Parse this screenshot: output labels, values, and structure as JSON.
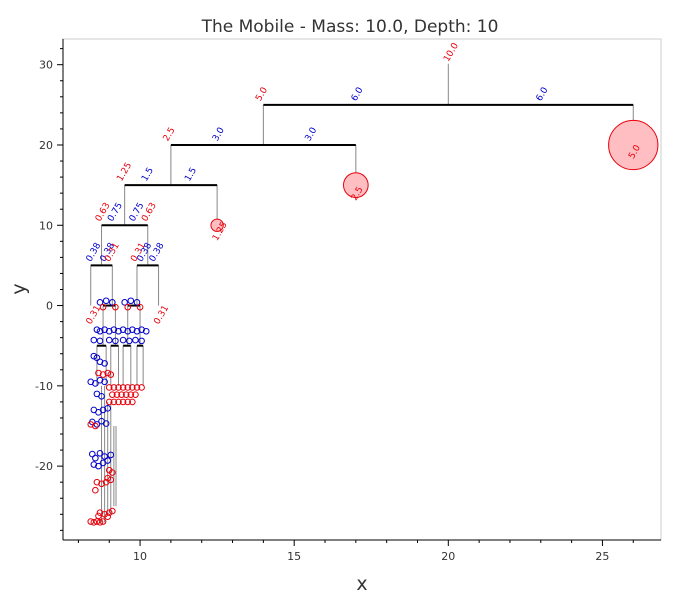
{
  "chart_data": {
    "type": "scatter",
    "title": "The Mobile  -  Mass: 10.0, Depth: 10",
    "xlabel": "x",
    "ylabel": "y",
    "xlim": [
      7.5,
      26.9
    ],
    "ylim": [
      -29.2,
      33.2
    ],
    "xticks": [
      10,
      15,
      20,
      25
    ],
    "yticks": [
      -20,
      -10,
      0,
      10,
      20,
      30
    ],
    "xticks_labels": [
      "10",
      "15",
      "20",
      "25"
    ],
    "yticks_labels": [
      "-20",
      "-10",
      "0",
      "10",
      "20",
      "30"
    ],
    "colors": {
      "mass": "#e8000b",
      "arm": "#0000cc",
      "rod": "#000000",
      "thread": "#888888",
      "mass_fill": "#ffbfc2"
    },
    "top": {
      "x": 20,
      "y": 30,
      "mass": "10.0"
    },
    "rods": [
      {
        "x1": 14,
        "x2": 26,
        "y": 25
      },
      {
        "x1": 11,
        "x2": 17,
        "y": 20
      },
      {
        "x1": 9.5,
        "x2": 12.5,
        "y": 15
      },
      {
        "x1": 8.75,
        "x2": 10.25,
        "y": 10
      },
      {
        "x1": 8.4,
        "x2": 9.1,
        "y": 5
      },
      {
        "x1": 9.9,
        "x2": 10.6,
        "y": 5
      },
      {
        "x1": 8.8,
        "x2": 9.2,
        "y": 0
      },
      {
        "x1": 9.6,
        "x2": 10.0,
        "y": 0
      },
      {
        "x1": 8.6,
        "x2": 8.9,
        "y": -5
      },
      {
        "x1": 9.05,
        "x2": 9.3,
        "y": -5
      },
      {
        "x1": 9.45,
        "x2": 9.7,
        "y": -5
      },
      {
        "x1": 9.9,
        "x2": 10.1,
        "y": -5
      }
    ],
    "threads": [
      {
        "x": 20,
        "y1": 30,
        "y2": 25
      },
      {
        "x": 14,
        "y1": 25,
        "y2": 20
      },
      {
        "x": 26,
        "y1": 25,
        "y2": 20
      },
      {
        "x": 11,
        "y1": 20,
        "y2": 15
      },
      {
        "x": 17,
        "y1": 20,
        "y2": 15
      },
      {
        "x": 9.5,
        "y1": 15,
        "y2": 10
      },
      {
        "x": 12.5,
        "y1": 15,
        "y2": 10
      },
      {
        "x": 8.75,
        "y1": 10,
        "y2": 5
      },
      {
        "x": 10.25,
        "y1": 10,
        "y2": 5
      },
      {
        "x": 8.4,
        "y1": 5,
        "y2": 0
      },
      {
        "x": 9.1,
        "y1": 5,
        "y2": 0
      },
      {
        "x": 9.9,
        "y1": 5,
        "y2": 0
      },
      {
        "x": 10.6,
        "y1": 5,
        "y2": 0
      },
      {
        "x": 8.8,
        "y1": 0,
        "y2": -5
      },
      {
        "x": 9.2,
        "y1": 0,
        "y2": -5
      },
      {
        "x": 9.6,
        "y1": 0,
        "y2": -5
      },
      {
        "x": 10.0,
        "y1": 0,
        "y2": -5
      },
      {
        "x": 8.6,
        "y1": -5,
        "y2": -10
      },
      {
        "x": 8.9,
        "y1": -5,
        "y2": -10
      },
      {
        "x": 9.05,
        "y1": -5,
        "y2": -10
      },
      {
        "x": 9.3,
        "y1": -5,
        "y2": -10
      },
      {
        "x": 9.45,
        "y1": -5,
        "y2": -10
      },
      {
        "x": 9.7,
        "y1": -5,
        "y2": -10
      },
      {
        "x": 9.9,
        "y1": -5,
        "y2": -10
      },
      {
        "x": 10.1,
        "y1": -5,
        "y2": -10
      },
      {
        "x": 8.75,
        "y1": -10,
        "y2": -27
      },
      {
        "x": 8.85,
        "y1": -10,
        "y2": -27
      },
      {
        "x": 8.95,
        "y1": -12,
        "y2": -26
      },
      {
        "x": 9.05,
        "y1": -12,
        "y2": -26
      },
      {
        "x": 9.15,
        "y1": -15,
        "y2": -25
      },
      {
        "x": 9.22,
        "y1": -15,
        "y2": -25
      }
    ],
    "masses": [
      {
        "x": 26,
        "y": 20,
        "r": 0.8,
        "label": "5.0"
      },
      {
        "x": 17,
        "y": 15,
        "r": 0.4,
        "label": "2.5"
      },
      {
        "x": 12.5,
        "y": 10,
        "r": 0.2,
        "label": "1.25"
      }
    ],
    "annotations": [
      {
        "x": 20,
        "y": 30.3,
        "text": "10.0",
        "color": "mass"
      },
      {
        "x": 13.9,
        "y": 25.4,
        "text": "5.0",
        "color": "mass"
      },
      {
        "x": 17.0,
        "y": 25.4,
        "text": "6.0",
        "color": "arm"
      },
      {
        "x": 23.0,
        "y": 25.4,
        "text": "6.0",
        "color": "arm"
      },
      {
        "x": 10.9,
        "y": 20.4,
        "text": "2.5",
        "color": "mass"
      },
      {
        "x": 12.5,
        "y": 20.4,
        "text": "3.0",
        "color": "arm"
      },
      {
        "x": 15.5,
        "y": 20.4,
        "text": "3.0",
        "color": "arm"
      },
      {
        "x": 9.4,
        "y": 15.4,
        "text": "1.25",
        "color": "mass"
      },
      {
        "x": 10.2,
        "y": 15.4,
        "text": "1.5",
        "color": "arm"
      },
      {
        "x": 11.6,
        "y": 15.4,
        "text": "1.5",
        "color": "arm"
      },
      {
        "x": 8.7,
        "y": 10.4,
        "text": "0.63",
        "color": "mass"
      },
      {
        "x": 9.1,
        "y": 10.4,
        "text": "0.75",
        "color": "arm"
      },
      {
        "x": 9.8,
        "y": 10.4,
        "text": "0.75",
        "color": "arm"
      },
      {
        "x": 10.2,
        "y": 10.4,
        "text": "0.63",
        "color": "mass"
      },
      {
        "x": 8.4,
        "y": 5.4,
        "text": "0.38",
        "color": "arm"
      },
      {
        "x": 8.85,
        "y": 5.4,
        "text": "0.38",
        "color": "arm"
      },
      {
        "x": 9.0,
        "y": 5.4,
        "text": "0.31",
        "color": "mass"
      },
      {
        "x": 9.85,
        "y": 5.4,
        "text": "0.31",
        "color": "mass"
      },
      {
        "x": 10.05,
        "y": 5.4,
        "text": "0.38",
        "color": "arm"
      },
      {
        "x": 10.45,
        "y": 5.4,
        "text": "0.38",
        "color": "arm"
      },
      {
        "x": 8.4,
        "y": -2.4,
        "text": "0.31",
        "color": "mass"
      },
      {
        "x": 10.6,
        "y": -2.4,
        "text": "0.31",
        "color": "mass"
      },
      {
        "x": 12.5,
        "y": 8.0,
        "text": "1.25",
        "color": "mass"
      },
      {
        "x": 17.0,
        "y": 13.0,
        "text": "2.5",
        "color": "mass"
      },
      {
        "x": 26.0,
        "y": 18.2,
        "text": "5.0",
        "color": "mass"
      }
    ],
    "leaves": [
      {
        "x": 8.7,
        "y": 0.4,
        "color": "arm"
      },
      {
        "x": 8.9,
        "y": 0.6,
        "color": "arm"
      },
      {
        "x": 9.1,
        "y": 0.4,
        "color": "arm"
      },
      {
        "x": 9.5,
        "y": 0.4,
        "color": "arm"
      },
      {
        "x": 9.7,
        "y": 0.6,
        "color": "arm"
      },
      {
        "x": 9.9,
        "y": 0.4,
        "color": "arm"
      },
      {
        "x": 8.8,
        "y": -0.2,
        "color": "mass"
      },
      {
        "x": 9.2,
        "y": -0.2,
        "color": "mass"
      },
      {
        "x": 9.6,
        "y": -0.2,
        "color": "mass"
      },
      {
        "x": 10.0,
        "y": -0.2,
        "color": "mass"
      },
      {
        "x": 8.6,
        "y": -3.0,
        "color": "arm"
      },
      {
        "x": 8.7,
        "y": -3.2,
        "color": "arm"
      },
      {
        "x": 8.85,
        "y": -3.0,
        "color": "arm"
      },
      {
        "x": 9.0,
        "y": -3.2,
        "color": "arm"
      },
      {
        "x": 9.15,
        "y": -3.0,
        "color": "arm"
      },
      {
        "x": 9.3,
        "y": -3.2,
        "color": "arm"
      },
      {
        "x": 9.45,
        "y": -3.0,
        "color": "arm"
      },
      {
        "x": 9.6,
        "y": -3.2,
        "color": "arm"
      },
      {
        "x": 9.75,
        "y": -3.0,
        "color": "arm"
      },
      {
        "x": 9.9,
        "y": -3.2,
        "color": "arm"
      },
      {
        "x": 10.05,
        "y": -3.0,
        "color": "arm"
      },
      {
        "x": 10.2,
        "y": -3.2,
        "color": "arm"
      },
      {
        "x": 8.5,
        "y": -4.3,
        "color": "arm"
      },
      {
        "x": 8.7,
        "y": -4.4,
        "color": "arm"
      },
      {
        "x": 9.0,
        "y": -4.3,
        "color": "arm"
      },
      {
        "x": 9.2,
        "y": -4.4,
        "color": "arm"
      },
      {
        "x": 9.45,
        "y": -4.3,
        "color": "arm"
      },
      {
        "x": 9.65,
        "y": -4.4,
        "color": "arm"
      },
      {
        "x": 9.85,
        "y": -4.3,
        "color": "arm"
      },
      {
        "x": 10.05,
        "y": -4.4,
        "color": "arm"
      },
      {
        "x": 8.5,
        "y": -6.3,
        "color": "arm"
      },
      {
        "x": 8.6,
        "y": -6.5,
        "color": "arm"
      },
      {
        "x": 8.7,
        "y": -7.0,
        "color": "arm"
      },
      {
        "x": 8.85,
        "y": -7.2,
        "color": "arm"
      },
      {
        "x": 8.4,
        "y": -9.5,
        "color": "arm"
      },
      {
        "x": 8.55,
        "y": -9.7,
        "color": "arm"
      },
      {
        "x": 8.7,
        "y": -9.3,
        "color": "arm"
      },
      {
        "x": 8.85,
        "y": -9.5,
        "color": "arm"
      },
      {
        "x": 8.65,
        "y": -8.4,
        "color": "mass"
      },
      {
        "x": 8.8,
        "y": -8.6,
        "color": "mass"
      },
      {
        "x": 8.95,
        "y": -8.4,
        "color": "mass"
      },
      {
        "x": 9.05,
        "y": -8.6,
        "color": "mass"
      },
      {
        "x": 9.0,
        "y": -10.2,
        "color": "mass"
      },
      {
        "x": 9.15,
        "y": -10.2,
        "color": "mass"
      },
      {
        "x": 9.3,
        "y": -10.2,
        "color": "mass"
      },
      {
        "x": 9.45,
        "y": -10.2,
        "color": "mass"
      },
      {
        "x": 9.6,
        "y": -10.2,
        "color": "mass"
      },
      {
        "x": 9.75,
        "y": -10.2,
        "color": "mass"
      },
      {
        "x": 9.9,
        "y": -10.2,
        "color": "mass"
      },
      {
        "x": 10.05,
        "y": -10.2,
        "color": "mass"
      },
      {
        "x": 9.1,
        "y": -11.1,
        "color": "mass"
      },
      {
        "x": 9.25,
        "y": -11.1,
        "color": "mass"
      },
      {
        "x": 9.4,
        "y": -11.1,
        "color": "mass"
      },
      {
        "x": 9.55,
        "y": -11.1,
        "color": "mass"
      },
      {
        "x": 9.7,
        "y": -11.1,
        "color": "mass"
      },
      {
        "x": 9.85,
        "y": -11.1,
        "color": "mass"
      },
      {
        "x": 9.0,
        "y": -12.0,
        "color": "mass"
      },
      {
        "x": 9.15,
        "y": -12.0,
        "color": "mass"
      },
      {
        "x": 9.3,
        "y": -12.0,
        "color": "mass"
      },
      {
        "x": 9.45,
        "y": -12.0,
        "color": "mass"
      },
      {
        "x": 9.6,
        "y": -12.0,
        "color": "mass"
      },
      {
        "x": 9.75,
        "y": -12.0,
        "color": "mass"
      },
      {
        "x": 8.6,
        "y": -11.0,
        "color": "arm"
      },
      {
        "x": 8.75,
        "y": -11.3,
        "color": "arm"
      },
      {
        "x": 8.5,
        "y": -13.0,
        "color": "arm"
      },
      {
        "x": 8.65,
        "y": -13.3,
        "color": "arm"
      },
      {
        "x": 8.8,
        "y": -13.0,
        "color": "arm"
      },
      {
        "x": 8.95,
        "y": -12.8,
        "color": "arm"
      },
      {
        "x": 8.45,
        "y": -14.5,
        "color": "arm"
      },
      {
        "x": 8.6,
        "y": -14.8,
        "color": "arm"
      },
      {
        "x": 8.75,
        "y": -14.4,
        "color": "arm"
      },
      {
        "x": 8.9,
        "y": -14.7,
        "color": "arm"
      },
      {
        "x": 8.4,
        "y": -14.8,
        "color": "mass"
      },
      {
        "x": 8.55,
        "y": -15.0,
        "color": "mass"
      },
      {
        "x": 8.45,
        "y": -18.5,
        "color": "arm"
      },
      {
        "x": 8.55,
        "y": -19.0,
        "color": "arm"
      },
      {
        "x": 8.7,
        "y": -18.4,
        "color": "arm"
      },
      {
        "x": 8.85,
        "y": -18.8,
        "color": "arm"
      },
      {
        "x": 8.95,
        "y": -19.3,
        "color": "arm"
      },
      {
        "x": 9.05,
        "y": -18.6,
        "color": "arm"
      },
      {
        "x": 8.5,
        "y": -19.8,
        "color": "arm"
      },
      {
        "x": 8.65,
        "y": -20.0,
        "color": "arm"
      },
      {
        "x": 8.8,
        "y": -19.6,
        "color": "arm"
      },
      {
        "x": 9.0,
        "y": -20.5,
        "color": "mass"
      },
      {
        "x": 9.1,
        "y": -20.8,
        "color": "mass"
      },
      {
        "x": 8.95,
        "y": -21.5,
        "color": "mass"
      },
      {
        "x": 9.05,
        "y": -21.7,
        "color": "mass"
      },
      {
        "x": 8.6,
        "y": -22.0,
        "color": "mass"
      },
      {
        "x": 8.75,
        "y": -22.2,
        "color": "mass"
      },
      {
        "x": 8.9,
        "y": -22.0,
        "color": "mass"
      },
      {
        "x": 8.55,
        "y": -23.0,
        "color": "mass"
      },
      {
        "x": 8.7,
        "y": -25.8,
        "color": "mass"
      },
      {
        "x": 8.85,
        "y": -26.0,
        "color": "mass"
      },
      {
        "x": 9.0,
        "y": -25.8,
        "color": "mass"
      },
      {
        "x": 9.1,
        "y": -25.6,
        "color": "mass"
      },
      {
        "x": 8.65,
        "y": -26.2,
        "color": "mass"
      },
      {
        "x": 8.95,
        "y": -26.3,
        "color": "mass"
      },
      {
        "x": 8.4,
        "y": -26.9,
        "color": "mass"
      },
      {
        "x": 8.5,
        "y": -27.0,
        "color": "mass"
      },
      {
        "x": 8.6,
        "y": -26.9,
        "color": "mass"
      },
      {
        "x": 8.7,
        "y": -27.0,
        "color": "mass"
      },
      {
        "x": 8.8,
        "y": -26.9,
        "color": "mass"
      }
    ]
  }
}
